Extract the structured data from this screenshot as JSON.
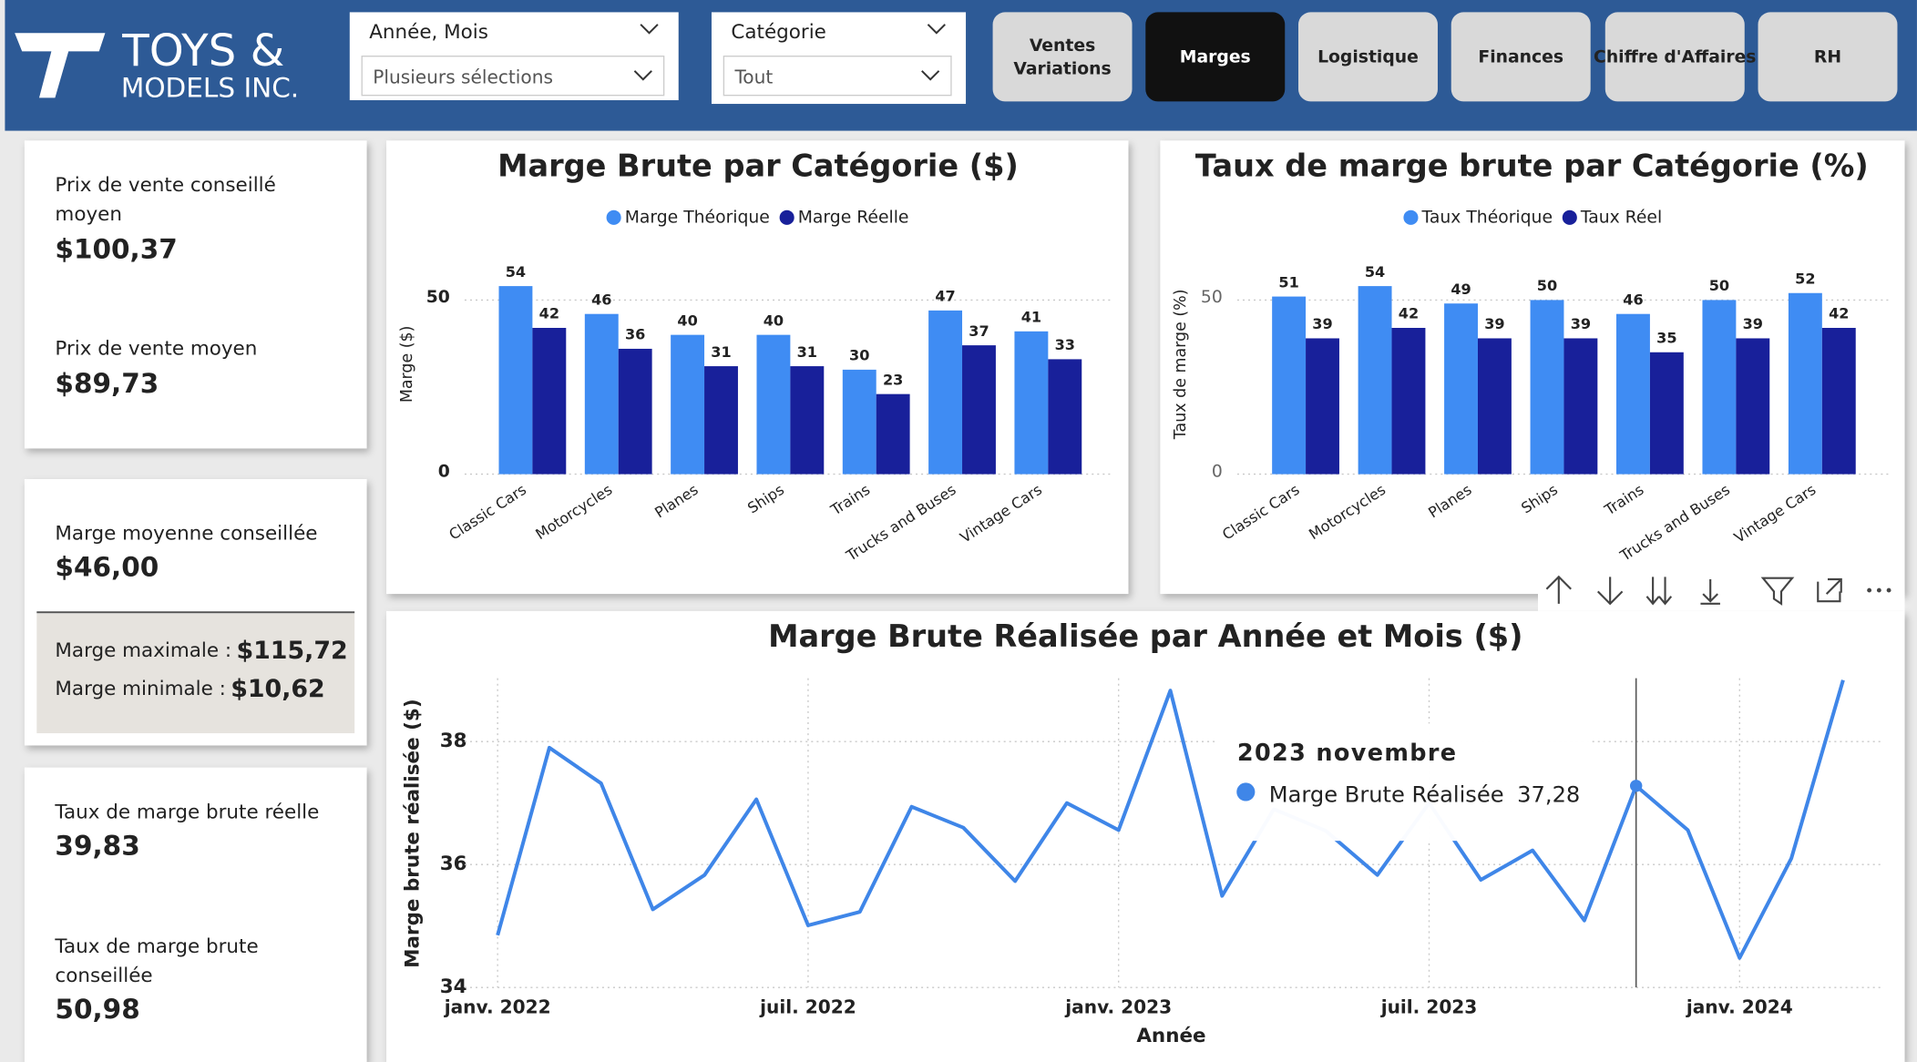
{
  "header": {
    "logo": [
      "TOYS &",
      "MODELS INC."
    ],
    "filters": [
      {
        "label": "Année, Mois",
        "value": "Plusieurs sélections"
      },
      {
        "label": "Catégorie",
        "value": "Tout"
      }
    ],
    "nav": [
      [
        "Ventes",
        "Variations"
      ],
      [
        "Marges"
      ],
      [
        "Logistique"
      ],
      [
        "Finances"
      ],
      [
        "Chiffre d'Affaires"
      ],
      [
        "RH"
      ]
    ],
    "active": 1
  },
  "kpis": [
    {
      "label": [
        "Prix de vente conseillé",
        "moyen"
      ],
      "value": "$100,37"
    },
    {
      "label": [
        "Prix de vente moyen"
      ],
      "value": "$89,73"
    },
    {
      "label": [
        "Marge moyenne conseillée"
      ],
      "value": "$46,00"
    },
    {
      "label": [
        "Taux de marge brute réelle"
      ],
      "value": "39,83"
    },
    {
      "label": [
        "Taux de marge brute",
        "conseillée"
      ],
      "value": "50,98"
    }
  ],
  "range": [
    {
      "label": "Marge maximale :",
      "value": "$115,72"
    },
    {
      "label": "Marge minimale :",
      "value": "$10,62"
    }
  ],
  "chart_data": [
    {
      "type": "bar",
      "title": "Marge Brute par Catégorie ($)",
      "y_label": "Marge ($)",
      "categories": [
        "Classic Cars",
        "Motorcycles",
        "Planes",
        "Ships",
        "Trains",
        "Trucks and Buses",
        "Vintage Cars"
      ],
      "series": [
        {
          "name": "Marge Théorique",
          "color": "#3f8cf3",
          "values": [
            54,
            46,
            40,
            40,
            30,
            47,
            41
          ]
        },
        {
          "name": "Marge Réelle",
          "color": "#18209a",
          "values": [
            42,
            36,
            31,
            31,
            23,
            37,
            33
          ]
        }
      ],
      "ylim": [
        0,
        60
      ],
      "yticks": [
        0,
        50
      ],
      "grid": true
    },
    {
      "type": "bar",
      "title": "Taux de marge brute par Catégorie (%)",
      "y_label": "Taux de marge (%)",
      "categories": [
        "Classic Cars",
        "Motorcycles",
        "Planes",
        "Ships",
        "Trains",
        "Trucks and Buses",
        "Vintage Cars"
      ],
      "series": [
        {
          "name": "Taux Théorique",
          "color": "#3f8cf3",
          "values": [
            51,
            54,
            49,
            50,
            46,
            50,
            52
          ]
        },
        {
          "name": "Taux Réel",
          "color": "#18209a",
          "values": [
            39,
            42,
            39,
            39,
            35,
            39,
            42
          ]
        }
      ],
      "ylim": [
        0,
        60
      ],
      "yticks": [
        0,
        50
      ],
      "grid": true
    },
    {
      "type": "line",
      "title": "Marge Brute Réalisée par Année et Mois ($)",
      "x_label": "Année",
      "y_label": "Marge brute réalisée ($)",
      "x": [
        "2022-01",
        "2022-02",
        "2022-03",
        "2022-04",
        "2022-05",
        "2022-06",
        "2022-07",
        "2022-08",
        "2022-09",
        "2022-10",
        "2022-11",
        "2022-12",
        "2023-01",
        "2023-02",
        "2023-03",
        "2023-04",
        "2023-05",
        "2023-06",
        "2023-07",
        "2023-08",
        "2023-09",
        "2023-10",
        "2023-11",
        "2023-12",
        "2024-01",
        "2024-02",
        "2024-03"
      ],
      "series": [
        {
          "name": "Marge Brute Réalisée",
          "color": "#3f86e8",
          "values": [
            34.85,
            37.9,
            37.32,
            35.27,
            35.83,
            37.06,
            35.01,
            35.23,
            36.94,
            36.6,
            35.73,
            37.0,
            36.56,
            38.83,
            35.49,
            36.9,
            36.55,
            35.83,
            37.0,
            35.75,
            36.23,
            35.09,
            37.28,
            36.56,
            34.48,
            36.1,
            39.0
          ]
        }
      ],
      "xlim": [
        "2022-01",
        "2024-03"
      ],
      "xticks": [
        {
          "value": "2022-01",
          "label": "janv. 2022"
        },
        {
          "value": "2022-07",
          "label": "juil. 2022"
        },
        {
          "value": "2023-01",
          "label": "janv. 2023"
        },
        {
          "value": "2023-07",
          "label": "juil. 2023"
        },
        {
          "value": "2024-01",
          "label": "janv. 2024"
        }
      ],
      "ylim": [
        34,
        39.03
      ],
      "yticks": [
        34,
        36,
        38
      ],
      "grid": true,
      "tooltip": {
        "title": "2023 novembre",
        "index": 22,
        "value": "37,28"
      }
    }
  ]
}
